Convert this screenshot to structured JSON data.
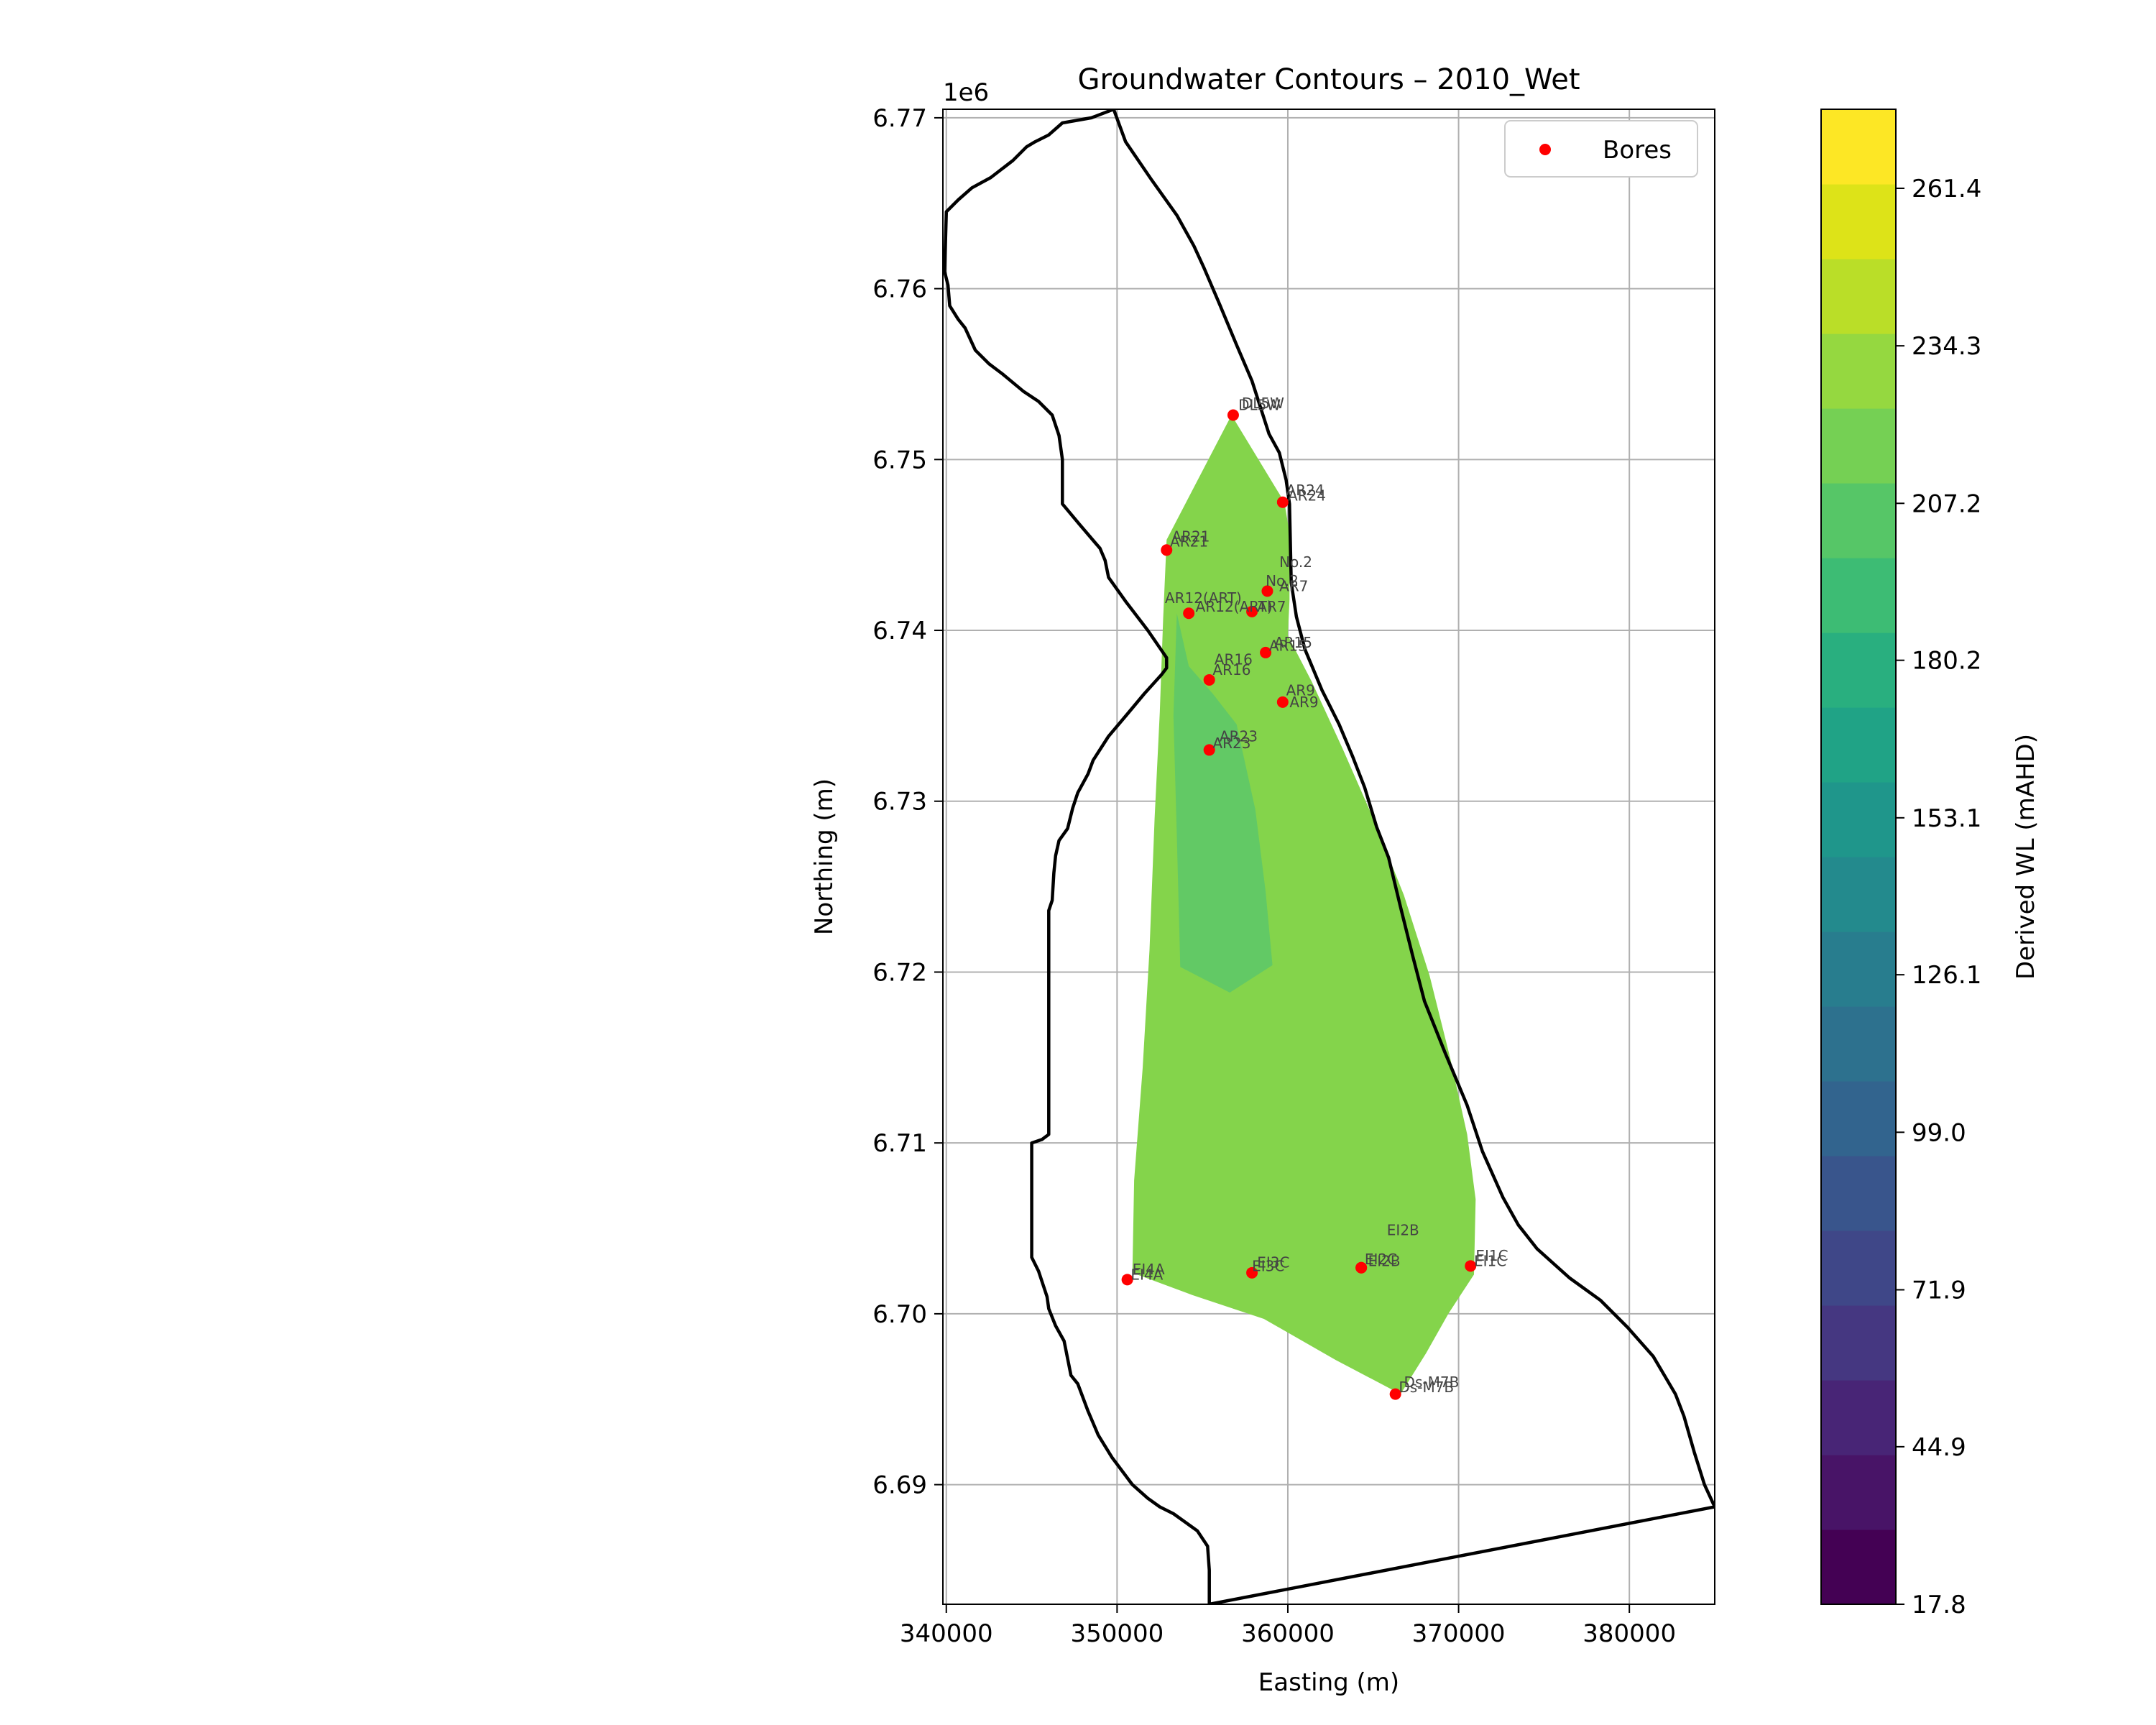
{
  "chart_data": {
    "type": "contour",
    "title": "Groundwater Contours – 2010_Wet",
    "xlabel": "Easting (m)",
    "ylabel": "Northing (m)",
    "y_offset_label": "1e6",
    "xlim": [
      339800,
      385000
    ],
    "ylim": [
      6683000,
      6770500
    ],
    "xticks": [
      340000,
      350000,
      360000,
      370000,
      380000
    ],
    "xtick_labels": [
      "340000",
      "350000",
      "360000",
      "370000",
      "380000"
    ],
    "yticks": [
      6690000,
      6700000,
      6710000,
      6720000,
      6730000,
      6740000,
      6750000,
      6760000,
      6770000
    ],
    "ytick_labels": [
      "6.69",
      "6.70",
      "6.71",
      "6.72",
      "6.73",
      "6.74",
      "6.75",
      "6.76",
      "6.77"
    ],
    "grid": true,
    "legend": {
      "placement": "upper right",
      "entries": [
        "Bores"
      ]
    },
    "bore_color": "#ff0000",
    "boundary_color": "#000000",
    "bores": [
      {
        "name": "DL5W",
        "x": 356800,
        "y": 6752600
      },
      {
        "name": "AR24",
        "x": 359700,
        "y": 6747500
      },
      {
        "name": "AR21",
        "x": 352900,
        "y": 6744700
      },
      {
        "name": "No.2",
        "x": 358800,
        "y": 6742300
      },
      {
        "name": "AR7",
        "x": 357900,
        "y": 6741100
      },
      {
        "name": "AR12(ART)",
        "x": 354200,
        "y": 6741000
      },
      {
        "name": "AR15",
        "x": 358700,
        "y": 6738700
      },
      {
        "name": "AR16",
        "x": 355400,
        "y": 6737100
      },
      {
        "name": "AR9",
        "x": 359700,
        "y": 6735800
      },
      {
        "name": "AR23",
        "x": 355400,
        "y": 6733000
      },
      {
        "name": "EI2B",
        "x": 364300,
        "y": 6702700
      },
      {
        "name": "EI2C",
        "x": 364300,
        "y": 6702700
      },
      {
        "name": "EI1C",
        "x": 370700,
        "y": 6702800
      },
      {
        "name": "EI3C",
        "x": 357900,
        "y": 6702400
      },
      {
        "name": "EI4A",
        "x": 350600,
        "y": 6702000
      },
      {
        "name": "Ds-M7B",
        "x": 366300,
        "y": 6695300
      }
    ],
    "bore_labels": [
      {
        "text": "DL5W",
        "x": 357300,
        "y": 6753000
      },
      {
        "text": "DL5W",
        "x": 357100,
        "y": 6752900
      },
      {
        "text": "AR24",
        "x": 359900,
        "y": 6747900
      },
      {
        "text": "AR24",
        "x": 360000,
        "y": 6747600
      },
      {
        "text": "AR21",
        "x": 353200,
        "y": 6745200
      },
      {
        "text": "AR21",
        "x": 353100,
        "y": 6744900
      },
      {
        "text": "No.2",
        "x": 359500,
        "y": 6743700
      },
      {
        "text": "No.2",
        "x": 358700,
        "y": 6742600
      },
      {
        "text": "AR7",
        "x": 359500,
        "y": 6742300
      },
      {
        "text": "AR12(ART)",
        "x": 352800,
        "y": 6741600
      },
      {
        "text": "AR12(ART)",
        "x": 354600,
        "y": 6741100
      },
      {
        "text": "AR7",
        "x": 358200,
        "y": 6741100
      },
      {
        "text": "AR15",
        "x": 359200,
        "y": 6739000
      },
      {
        "text": "AR15",
        "x": 358900,
        "y": 6738800
      },
      {
        "text": "AR16",
        "x": 355700,
        "y": 6738000
      },
      {
        "text": "AR16",
        "x": 355600,
        "y": 6737400
      },
      {
        "text": "AR9",
        "x": 359900,
        "y": 6736200
      },
      {
        "text": "AR9",
        "x": 360100,
        "y": 6735500
      },
      {
        "text": "AR23",
        "x": 356000,
        "y": 6733500
      },
      {
        "text": "AR23",
        "x": 355600,
        "y": 6733100
      },
      {
        "text": "EI2B",
        "x": 365800,
        "y": 6704600
      },
      {
        "text": "EI2C",
        "x": 364500,
        "y": 6702900
      },
      {
        "text": "EI2B",
        "x": 364700,
        "y": 6702800
      },
      {
        "text": "EI1C",
        "x": 371000,
        "y": 6703100
      },
      {
        "text": "EI1C",
        "x": 370900,
        "y": 6702800
      },
      {
        "text": "EI3C",
        "x": 358200,
        "y": 6702700
      },
      {
        "text": "EI3C",
        "x": 357900,
        "y": 6702500
      },
      {
        "text": "EI4A",
        "x": 350900,
        "y": 6702300
      },
      {
        "text": "EI4A",
        "x": 350800,
        "y": 6702000
      },
      {
        "text": "Ds-M7B",
        "x": 366800,
        "y": 6695700
      },
      {
        "text": "Ds-M7B",
        "x": 366500,
        "y": 6695400
      }
    ],
    "boundary": [
      [
        349800,
        6770500
      ],
      [
        348500,
        6770000
      ],
      [
        346800,
        6769700
      ],
      [
        346000,
        6769000
      ],
      [
        345200,
        6768600
      ],
      [
        344700,
        6768300
      ],
      [
        343900,
        6767500
      ],
      [
        342600,
        6766500
      ],
      [
        341500,
        6765900
      ],
      [
        340700,
        6765200
      ],
      [
        340000,
        6764500
      ],
      [
        339900,
        6761000
      ],
      [
        340100,
        6760200
      ],
      [
        340200,
        6759000
      ],
      [
        340700,
        6758200
      ],
      [
        341100,
        6757700
      ],
      [
        341700,
        6756400
      ],
      [
        342500,
        6755600
      ],
      [
        343300,
        6755000
      ],
      [
        344500,
        6754000
      ],
      [
        345400,
        6753400
      ],
      [
        346200,
        6752600
      ],
      [
        346600,
        6751400
      ],
      [
        346800,
        6750000
      ],
      [
        346800,
        6747400
      ],
      [
        347800,
        6746200
      ],
      [
        349000,
        6744800
      ],
      [
        349300,
        6744100
      ],
      [
        349500,
        6743100
      ],
      [
        350500,
        6741700
      ],
      [
        351800,
        6740000
      ],
      [
        352900,
        6738400
      ],
      [
        352900,
        6737800
      ],
      [
        352600,
        6737400
      ],
      [
        351600,
        6736300
      ],
      [
        350600,
        6735100
      ],
      [
        349500,
        6733800
      ],
      [
        348600,
        6732400
      ],
      [
        348300,
        6731600
      ],
      [
        347700,
        6730500
      ],
      [
        347400,
        6729600
      ],
      [
        347100,
        6728400
      ],
      [
        346600,
        6727700
      ],
      [
        346400,
        6726800
      ],
      [
        346300,
        6725800
      ],
      [
        346200,
        6724200
      ],
      [
        346000,
        6723600
      ],
      [
        346000,
        6710500
      ],
      [
        345600,
        6710200
      ],
      [
        345000,
        6710000
      ],
      [
        345000,
        6706900
      ],
      [
        345000,
        6703300
      ],
      [
        345400,
        6702500
      ],
      [
        345900,
        6701000
      ],
      [
        346000,
        6700300
      ],
      [
        346400,
        6699300
      ],
      [
        346900,
        6698400
      ],
      [
        347300,
        6696400
      ],
      [
        347700,
        6695900
      ],
      [
        348300,
        6694300
      ],
      [
        348900,
        6692900
      ],
      [
        349700,
        6691600
      ],
      [
        350900,
        6690000
      ],
      [
        351800,
        6689200
      ],
      [
        352500,
        6688700
      ],
      [
        353300,
        6688300
      ],
      [
        354700,
        6687300
      ],
      [
        355300,
        6686400
      ],
      [
        355400,
        6685000
      ],
      [
        355400,
        6683000
      ],
      [
        385000,
        6688700
      ],
      [
        384400,
        6690000
      ],
      [
        383800,
        6691900
      ],
      [
        383200,
        6694000
      ],
      [
        382700,
        6695300
      ],
      [
        381400,
        6697500
      ],
      [
        379900,
        6699200
      ],
      [
        378300,
        6700800
      ],
      [
        376500,
        6702100
      ],
      [
        374600,
        6703800
      ],
      [
        373500,
        6705200
      ],
      [
        372600,
        6706800
      ],
      [
        371400,
        6709500
      ],
      [
        370500,
        6712200
      ],
      [
        369200,
        6715300
      ],
      [
        368000,
        6718300
      ],
      [
        367300,
        6721000
      ],
      [
        366600,
        6723800
      ],
      [
        365900,
        6726700
      ],
      [
        365200,
        6728500
      ],
      [
        364500,
        6730800
      ],
      [
        363800,
        6732600
      ],
      [
        363000,
        6734500
      ],
      [
        362000,
        6736500
      ],
      [
        361000,
        6738900
      ],
      [
        360500,
        6740800
      ],
      [
        360200,
        6742800
      ],
      [
        360100,
        6747400
      ],
      [
        359900,
        6748800
      ],
      [
        359500,
        6750400
      ],
      [
        358900,
        6751500
      ],
      [
        357900,
        6754600
      ],
      [
        357000,
        6756700
      ],
      [
        356000,
        6759100
      ],
      [
        355100,
        6761200
      ],
      [
        354500,
        6762500
      ],
      [
        353500,
        6764300
      ],
      [
        352000,
        6766400
      ],
      [
        350500,
        6768600
      ],
      [
        349800,
        6770500
      ]
    ],
    "contour_regions": [
      {
        "level": "220.5-234.3",
        "color": "#84d44b",
        "polygon": [
          [
            356700,
            6752600
          ],
          [
            359800,
            6747500
          ],
          [
            360100,
            6745700
          ],
          [
            360100,
            6741800
          ],
          [
            360000,
            6739700
          ],
          [
            361400,
            6737000
          ],
          [
            363200,
            6733100
          ],
          [
            365000,
            6729000
          ],
          [
            366800,
            6724500
          ],
          [
            368300,
            6719800
          ],
          [
            369500,
            6715000
          ],
          [
            370500,
            6710500
          ],
          [
            371000,
            6706700
          ],
          [
            370900,
            6702300
          ],
          [
            369400,
            6700000
          ],
          [
            368100,
            6697700
          ],
          [
            366600,
            6695300
          ],
          [
            362800,
            6697300
          ],
          [
            358600,
            6699700
          ],
          [
            354400,
            6701100
          ],
          [
            350900,
            6702400
          ],
          [
            351000,
            6707800
          ],
          [
            351500,
            6714400
          ],
          [
            351900,
            6721300
          ],
          [
            352200,
            6729000
          ],
          [
            352500,
            6735200
          ],
          [
            352700,
            6740700
          ],
          [
            352900,
            6745300
          ]
        ]
      },
      {
        "level": "207.2-220.5",
        "color": "#62c965",
        "polygon": [
          [
            353500,
            6741000
          ],
          [
            354200,
            6737900
          ],
          [
            355600,
            6736300
          ],
          [
            357000,
            6734500
          ],
          [
            358100,
            6729500
          ],
          [
            358700,
            6724700
          ],
          [
            359100,
            6720400
          ],
          [
            356600,
            6718800
          ],
          [
            353700,
            6720300
          ],
          [
            353500,
            6728000
          ],
          [
            353300,
            6735000
          ]
        ]
      }
    ],
    "colorbar": {
      "label": "Derived WL (mAHD)",
      "min": 17.8,
      "max": 275,
      "tick_values": [
        17.8,
        44.9,
        71.9,
        99.0,
        126.1,
        153.1,
        180.2,
        207.2,
        234.3,
        261.4
      ],
      "tick_labels": [
        "17.8",
        "44.9",
        "71.9",
        "99.0",
        "126.1",
        "153.1",
        "180.2",
        "207.2",
        "234.3",
        "261.4"
      ],
      "bands": [
        "#440154",
        "#481467",
        "#482576",
        "#453781",
        "#3f4788",
        "#39558c",
        "#32648e",
        "#2d718e",
        "#287d8e",
        "#238a8d",
        "#1f968b",
        "#20a386",
        "#29af7f",
        "#3dbc74",
        "#56c667",
        "#75d054",
        "#95d840",
        "#bade28",
        "#dde318",
        "#fde725"
      ]
    }
  }
}
